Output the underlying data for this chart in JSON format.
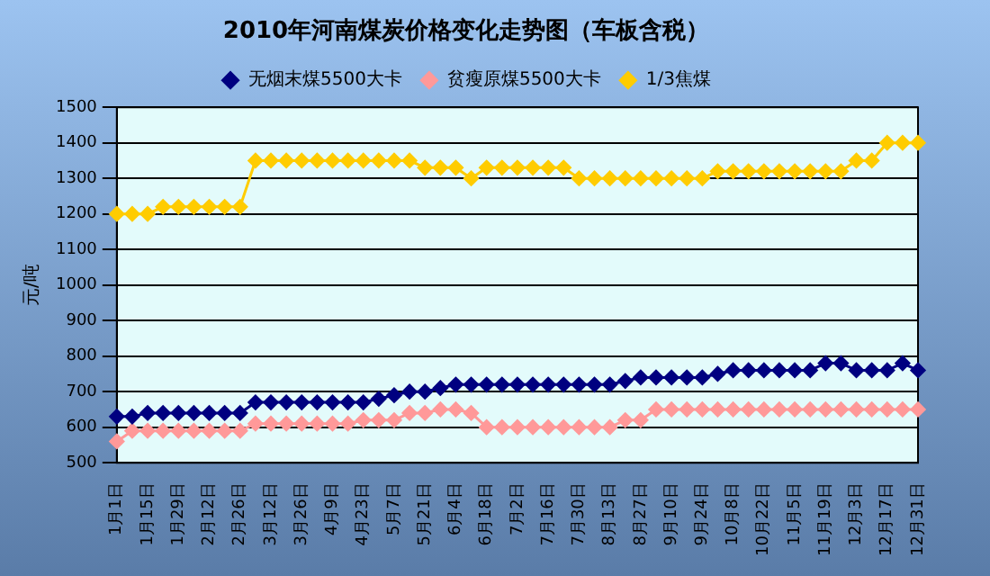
{
  "chart_data": {
    "type": "line",
    "title": "2010年河南煤炭价格变化走势图（车板含税）",
    "ylabel": "元/吨",
    "categories": [
      "1月1日",
      null,
      "1月15日",
      null,
      "1月29日",
      null,
      "2月12日",
      null,
      "2月26日",
      null,
      "3月12日",
      null,
      "3月26日",
      null,
      "4月9日",
      null,
      "4月23日",
      null,
      "5月7日",
      null,
      "5月21日",
      null,
      "6月4日",
      null,
      "6月18日",
      null,
      "7月2日",
      null,
      "7月16日",
      null,
      "7月30日",
      null,
      "8月13日",
      null,
      "8月27日",
      null,
      "9月10日",
      null,
      "9月24日",
      null,
      "10月8日",
      null,
      "10月22日",
      null,
      "11月5日",
      null,
      "11月19日",
      null,
      "12月3日",
      null,
      "12月17日",
      null,
      "12月31日"
    ],
    "series": [
      {
        "name": "无烟末煤5500大卡",
        "color": "#000080",
        "values": [
          630,
          630,
          640,
          640,
          640,
          640,
          640,
          640,
          640,
          670,
          670,
          670,
          670,
          670,
          670,
          670,
          670,
          680,
          690,
          700,
          700,
          710,
          720,
          720,
          720,
          720,
          720,
          720,
          720,
          720,
          720,
          720,
          720,
          730,
          740,
          740,
          740,
          740,
          740,
          750,
          760,
          760,
          760,
          760,
          760,
          760,
          780,
          780,
          760,
          760,
          760,
          780,
          760
        ]
      },
      {
        "name": "贫瘦原煤5500大卡",
        "color": "#ff9999",
        "values": [
          560,
          590,
          590,
          590,
          590,
          590,
          590,
          590,
          590,
          610,
          610,
          610,
          610,
          610,
          610,
          610,
          620,
          620,
          620,
          640,
          640,
          650,
          650,
          640,
          600,
          600,
          600,
          600,
          600,
          600,
          600,
          600,
          600,
          620,
          620,
          650,
          650,
          650,
          650,
          650,
          650,
          650,
          650,
          650,
          650,
          650,
          650,
          650,
          650,
          650,
          650,
          650,
          650
        ]
      },
      {
        "name": "1/3焦煤",
        "color": "#ffcc00",
        "values": [
          1200,
          1200,
          1200,
          1220,
          1220,
          1220,
          1220,
          1220,
          1220,
          1350,
          1350,
          1350,
          1350,
          1350,
          1350,
          1350,
          1350,
          1350,
          1350,
          1350,
          1330,
          1330,
          1330,
          1300,
          1330,
          1330,
          1330,
          1330,
          1330,
          1330,
          1300,
          1300,
          1300,
          1300,
          1300,
          1300,
          1300,
          1300,
          1300,
          1320,
          1320,
          1320,
          1320,
          1320,
          1320,
          1320,
          1320,
          1320,
          1350,
          1350,
          1400,
          1400,
          1400
        ]
      }
    ],
    "ylim": [
      500,
      1500
    ],
    "yticks": [
      500,
      600,
      700,
      800,
      900,
      1000,
      1100,
      1200,
      1300,
      1400,
      1500
    ],
    "grid": "y",
    "legend": "top",
    "marker": "diamond",
    "line_style": "solid"
  }
}
